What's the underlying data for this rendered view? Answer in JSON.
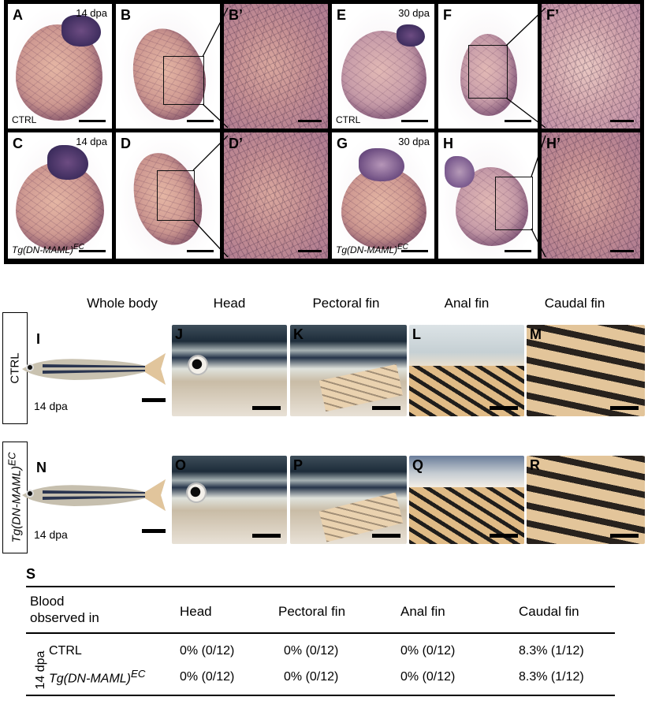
{
  "heart_panels": {
    "a": {
      "letter": "A",
      "stage": "14 dpa",
      "condition": "CTRL"
    },
    "b": {
      "letter": "B"
    },
    "b_prime": {
      "letter": "B’"
    },
    "e": {
      "letter": "E",
      "stage": "30 dpa",
      "condition": "CTRL"
    },
    "f": {
      "letter": "F"
    },
    "f_prime": {
      "letter": "F’"
    },
    "c": {
      "letter": "C",
      "stage": "14 dpa",
      "condition_main": "Tg(DN-MAML)",
      "condition_sup": "EC"
    },
    "d": {
      "letter": "D"
    },
    "d_prime": {
      "letter": "D’"
    },
    "g": {
      "letter": "G",
      "stage": "30 dpa",
      "condition_main": "Tg(DN-MAML)",
      "condition_sup": "EC"
    },
    "h": {
      "letter": "H"
    },
    "h_prime": {
      "letter": "H’"
    }
  },
  "fish_columns": [
    "Whole body",
    "Head",
    "Pectoral fin",
    "Anal fin",
    "Caudal fin"
  ],
  "fish_rows": {
    "ctrl": {
      "label": "CTRL",
      "stage": "14 dpa",
      "letters": [
        "I",
        "J",
        "K",
        "L",
        "M"
      ]
    },
    "tg": {
      "label_main": "Tg(DN-MAML)",
      "label_sup": "EC",
      "stage": "14 dpa",
      "letters": [
        "N",
        "O",
        "P",
        "Q",
        "R"
      ]
    }
  },
  "table": {
    "letter": "S",
    "header": {
      "col0_line1": "Blood",
      "col0_line2": "observed in",
      "col1": "Head",
      "col2": "Pectoral fin",
      "col3": "Anal fin",
      "col4": "Caudal fin"
    },
    "group_label": "14 dpa",
    "rows": [
      {
        "label_main": "CTRL",
        "label_sup": "",
        "values": [
          "0% (0/12)",
          "0% (0/12)",
          "0% (0/12)",
          "8.3% (1/12)"
        ]
      },
      {
        "label_main": "Tg(DN-MAML)",
        "label_sup": "EC",
        "values": [
          "0% (0/12)",
          "0% (0/12)",
          "0% (0/12)",
          "8.3% (1/12)"
        ]
      }
    ]
  },
  "colors": {
    "frame": "#000000",
    "heart_tissue": "#cc9690",
    "vessel_stain": "#3f2e5f"
  }
}
